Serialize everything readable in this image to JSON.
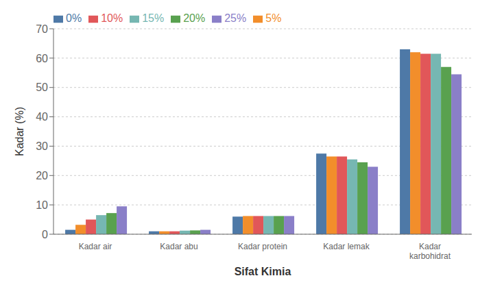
{
  "chart_data": {
    "type": "bar",
    "xlabel": "Sifat Kimia",
    "ylabel": "Kadar (%)",
    "categories": [
      "Kadar air",
      "Kadar abu",
      "Kadar protein",
      "Kadar lemak",
      "Kadar\nkarbohidrat"
    ],
    "series": [
      {
        "name": "0%",
        "color": "#4e79a7",
        "values": [
          1.5,
          1.0,
          6.0,
          27.5,
          63.0
        ]
      },
      {
        "name": "5%",
        "color": "#f28e2b",
        "values": [
          3.2,
          1.0,
          6.2,
          26.5,
          62.0
        ]
      },
      {
        "name": "10%",
        "color": "#e15759",
        "values": [
          5.0,
          1.0,
          6.2,
          26.5,
          61.5
        ]
      },
      {
        "name": "15%",
        "color": "#76b7b2",
        "values": [
          6.5,
          1.2,
          6.2,
          25.5,
          61.5
        ]
      },
      {
        "name": "20%",
        "color": "#59a14f",
        "values": [
          7.2,
          1.3,
          6.2,
          24.5,
          57.0
        ]
      },
      {
        "name": "25%",
        "color": "#8a7fc8",
        "values": [
          9.5,
          1.5,
          6.2,
          23.0,
          54.5
        ]
      }
    ],
    "ylim": [
      0,
      70
    ],
    "yticks": [
      0,
      10,
      20,
      30,
      40,
      50,
      60,
      70
    ],
    "grid": true,
    "legend": "upper left"
  }
}
